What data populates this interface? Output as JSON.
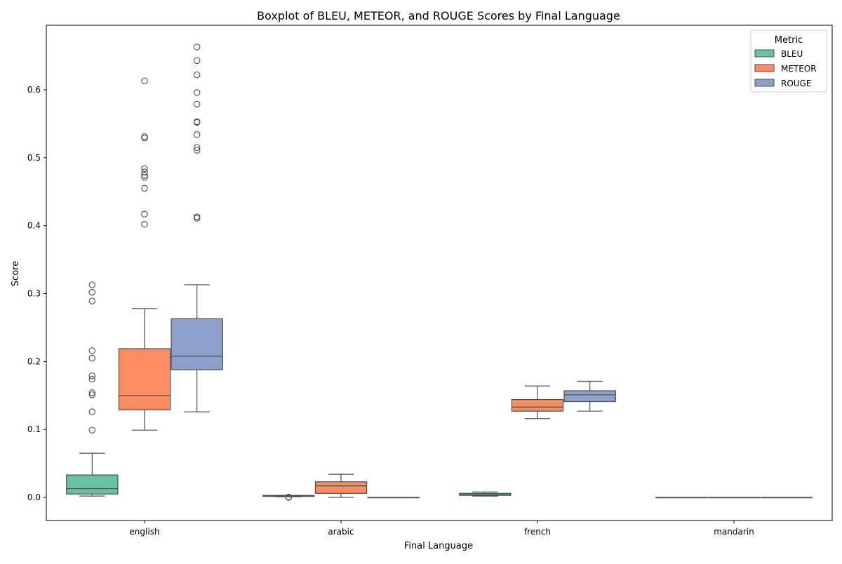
{
  "chart_data": {
    "type": "boxplot",
    "title": "Boxplot of BLEU, METEOR, and ROUGE Scores by Final Language",
    "xlabel": "Final Language",
    "ylabel": "Score",
    "ylim": [
      -0.034,
      0.695
    ],
    "yticks": [
      0.0,
      0.1,
      0.2,
      0.3,
      0.4,
      0.5,
      0.6
    ],
    "ytick_labels": [
      "0.0",
      "0.1",
      "0.2",
      "0.3",
      "0.4",
      "0.5",
      "0.6"
    ],
    "grid": false,
    "categories": [
      "english",
      "arabic",
      "french",
      "mandarin"
    ],
    "legend": {
      "title": "Metric",
      "placement": "top-right"
    },
    "series": [
      {
        "name": "BLEU",
        "color": "#66c2a5",
        "boxes": [
          {
            "category": "english",
            "whislo": 0.002,
            "q1": 0.005,
            "med": 0.013,
            "q3": 0.033,
            "whishi": 0.065,
            "fliers": [
              0.099,
              0.126,
              0.151,
              0.154,
              0.174,
              0.179,
              0.205,
              0.216,
              0.289,
              0.302,
              0.313
            ]
          },
          {
            "category": "arabic",
            "whislo": 0.001,
            "q1": 0.0015,
            "med": 0.002,
            "q3": 0.003,
            "whishi": 0.003,
            "fliers": [
              0.0,
              0.0005
            ]
          },
          {
            "category": "french",
            "whislo": 0.002,
            "q1": 0.003,
            "med": 0.004,
            "q3": 0.006,
            "whishi": 0.008,
            "fliers": []
          },
          {
            "category": "mandarin",
            "whislo": 0.0,
            "q1": 0.0,
            "med": 0.0,
            "q3": 0.0,
            "whishi": 0.0,
            "fliers": []
          }
        ]
      },
      {
        "name": "METEOR",
        "color": "#fc8d62",
        "boxes": [
          {
            "category": "english",
            "whislo": 0.099,
            "q1": 0.129,
            "med": 0.15,
            "q3": 0.219,
            "whishi": 0.278,
            "fliers": [
              0.402,
              0.417,
              0.455,
              0.471,
              0.474,
              0.479,
              0.484,
              0.529,
              0.531,
              0.613
            ]
          },
          {
            "category": "arabic",
            "whislo": 0.0,
            "q1": 0.006,
            "med": 0.017,
            "q3": 0.023,
            "whishi": 0.034,
            "fliers": []
          },
          {
            "category": "french",
            "whislo": 0.116,
            "q1": 0.127,
            "med": 0.133,
            "q3": 0.144,
            "whishi": 0.164,
            "fliers": []
          },
          {
            "category": "mandarin",
            "whislo": 0.0,
            "q1": 0.0,
            "med": 0.0,
            "q3": 0.0,
            "whishi": 0.0,
            "fliers": []
          }
        ]
      },
      {
        "name": "ROUGE",
        "color": "#8da0cb",
        "boxes": [
          {
            "category": "english",
            "whislo": 0.126,
            "q1": 0.188,
            "med": 0.208,
            "q3": 0.263,
            "whishi": 0.313,
            "fliers": [
              0.411,
              0.413,
              0.511,
              0.515,
              0.534,
              0.552,
              0.553,
              0.579,
              0.596,
              0.622,
              0.643,
              0.663
            ]
          },
          {
            "category": "arabic",
            "whislo": 0.0,
            "q1": 0.0,
            "med": 0.0,
            "q3": 0.0,
            "whishi": 0.0,
            "fliers": []
          },
          {
            "category": "french",
            "whislo": 0.127,
            "q1": 0.141,
            "med": 0.151,
            "q3": 0.157,
            "whishi": 0.171,
            "fliers": []
          },
          {
            "category": "mandarin",
            "whislo": 0.0,
            "q1": 0.0,
            "med": 0.0,
            "q3": 0.0,
            "whishi": 0.0,
            "fliers": []
          }
        ]
      }
    ]
  }
}
